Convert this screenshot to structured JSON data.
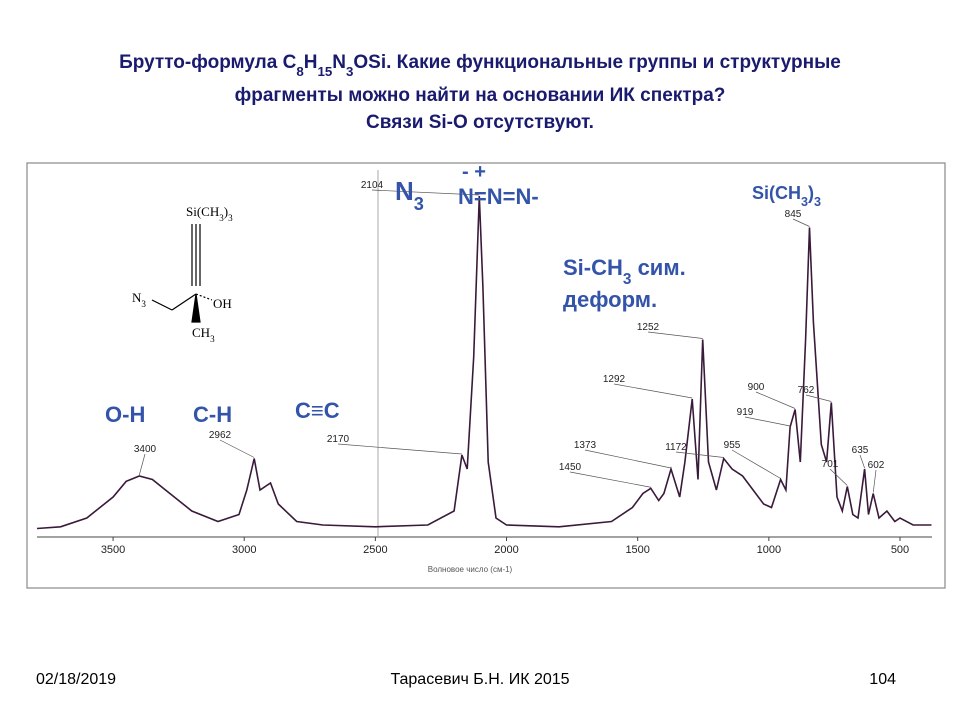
{
  "slide": {
    "title_line1": [
      "Брутто-формула C",
      "8",
      "H",
      "15",
      "N",
      "3",
      "OSi. Какие функциональные группы и структурные"
    ],
    "title_line2": "фрагменты можно найти на основании ИК спектра?",
    "title_line3": "Связи Si-O отсутствуют."
  },
  "structure": {
    "top": [
      "Si(CH",
      "3",
      ")",
      "3"
    ],
    "left": [
      "N",
      "3"
    ],
    "right": "OH",
    "bottom": [
      "CH",
      "3"
    ]
  },
  "chart_data": {
    "type": "line",
    "x_label": "Волновое число (см-1)",
    "x": [
      3790,
      3700,
      3600,
      3500,
      3450,
      3400,
      3350,
      3300,
      3200,
      3100,
      3020,
      2990,
      2962,
      2940,
      2900,
      2870,
      2800,
      2700,
      2500,
      2300,
      2200,
      2170,
      2150,
      2125,
      2104,
      2090,
      2070,
      2040,
      2000,
      1800,
      1600,
      1520,
      1480,
      1450,
      1420,
      1400,
      1373,
      1340,
      1320,
      1292,
      1270,
      1252,
      1230,
      1200,
      1172,
      1140,
      1100,
      1060,
      1020,
      990,
      955,
      935,
      919,
      900,
      880,
      860,
      845,
      830,
      800,
      780,
      762,
      740,
      720,
      701,
      680,
      660,
      635,
      620,
      602,
      580,
      550,
      520,
      500,
      450,
      380
    ],
    "values": [
      0.01,
      0.015,
      0.04,
      0.1,
      0.145,
      0.16,
      0.15,
      0.12,
      0.06,
      0.03,
      0.05,
      0.12,
      0.21,
      0.12,
      0.14,
      0.08,
      0.03,
      0.02,
      0.015,
      0.02,
      0.06,
      0.22,
      0.18,
      0.5,
      0.96,
      0.7,
      0.2,
      0.04,
      0.02,
      0.015,
      0.03,
      0.07,
      0.11,
      0.125,
      0.09,
      0.11,
      0.18,
      0.1,
      0.2,
      0.38,
      0.15,
      0.55,
      0.2,
      0.12,
      0.21,
      0.18,
      0.16,
      0.12,
      0.08,
      0.07,
      0.15,
      0.12,
      0.3,
      0.35,
      0.2,
      0.55,
      0.87,
      0.6,
      0.25,
      0.2,
      0.37,
      0.1,
      0.06,
      0.13,
      0.05,
      0.04,
      0.18,
      0.05,
      0.11,
      0.04,
      0.06,
      0.03,
      0.04,
      0.02,
      0.02
    ],
    "color": "#3a1a3a",
    "xlim": [
      3790,
      378
    ],
    "ylim": [
      0,
      1
    ],
    "xticks": [
      3500,
      3000,
      2500,
      2000,
      1500,
      1000,
      500
    ],
    "peaks": [
      3400,
      2962,
      2170,
      2104,
      1450,
      1373,
      1292,
      1252,
      1172,
      955,
      919,
      900,
      845,
      762,
      701,
      635,
      602
    ],
    "groups": [
      {
        "parts": [
          "O-H"
        ]
      },
      {
        "parts": [
          "C-H"
        ]
      },
      {
        "parts": [
          "C≡C"
        ]
      },
      {
        "parts": [
          "N",
          "3"
        ]
      },
      {
        "parts": [
          "-   +"
        ]
      },
      {
        "parts": [
          "N=N=N-"
        ]
      },
      {
        "parts": [
          "Si-CH",
          "3",
          " сим."
        ]
      },
      {
        "parts": [
          "деформ."
        ]
      },
      {
        "parts": [
          "Si(CH",
          "3",
          ")",
          "3"
        ]
      }
    ]
  },
  "footer": {
    "date": "02/18/2019",
    "author": "Тарасевич Б.Н.  ИК 2015",
    "page": "104"
  }
}
